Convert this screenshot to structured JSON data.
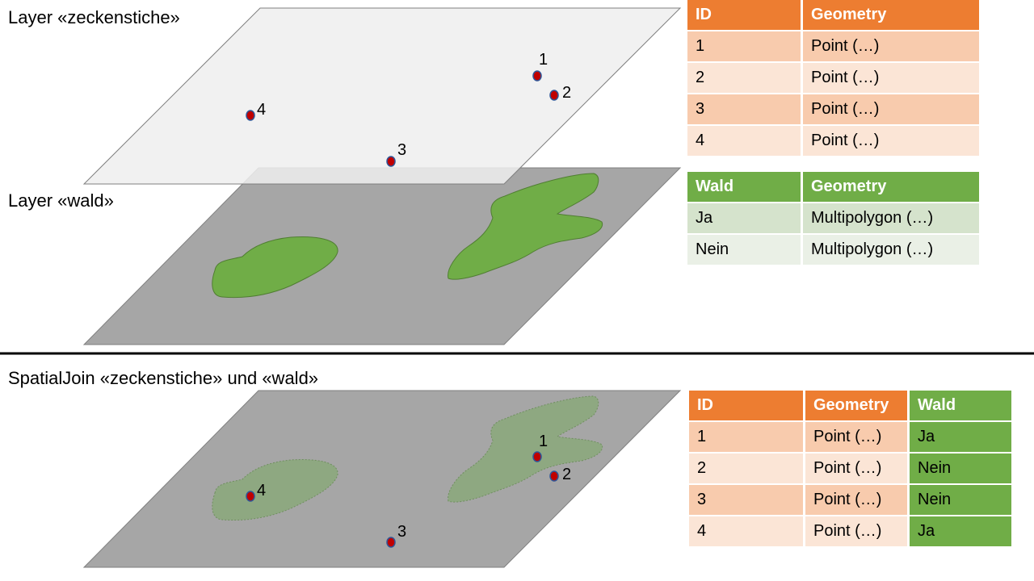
{
  "labels": {
    "layer1": "Layer «zeckenstiche»",
    "layer2": "Layer «wald»",
    "join": "SpatialJoin «zeckenstiche» und «wald»"
  },
  "points": [
    {
      "id": "1"
    },
    {
      "id": "2"
    },
    {
      "id": "3"
    },
    {
      "id": "4"
    }
  ],
  "table_zeckenstiche": {
    "headers": [
      "ID",
      "Geometry"
    ],
    "rows": [
      [
        "1",
        "Point (…)"
      ],
      [
        "2",
        "Point (…)"
      ],
      [
        "3",
        "Point (…)"
      ],
      [
        "4",
        "Point (…)"
      ]
    ]
  },
  "table_wald": {
    "headers": [
      "Wald",
      "Geometry"
    ],
    "rows": [
      [
        "Ja",
        "Multipolygon (…)"
      ],
      [
        "Nein",
        "Multipolygon (…)"
      ]
    ]
  },
  "table_join": {
    "headers": [
      "ID",
      "Geometry",
      "Wald"
    ],
    "rows": [
      [
        "1",
        "Point (…)",
        "Ja"
      ],
      [
        "2",
        "Point (…)",
        "Nein"
      ],
      [
        "3",
        "Point (…)",
        "Nein"
      ],
      [
        "4",
        "Point (…)",
        "Ja"
      ]
    ]
  },
  "colors": {
    "layer_top": "#eeeeee",
    "layer_bottom": "#a6a6a6",
    "forest": "#70ad47",
    "point": "#c00000",
    "header_orange": "#ed7d31",
    "header_green": "#70ad47"
  }
}
